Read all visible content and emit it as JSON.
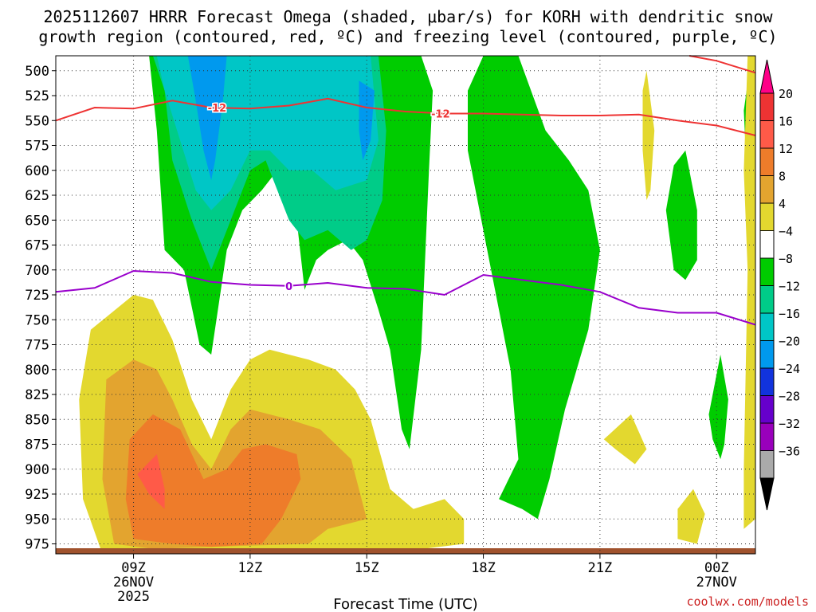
{
  "chart_data": {
    "type": "heatmap",
    "title_line1": "2025112607 HRRR Forecast Omega (shaded, μbar/s) for KORH with dendritic snow",
    "title_line2": "growth region (contoured, red, ºC) and freezing level (contoured, purple, ºC)",
    "xlabel": "Forecast Time (UTC)",
    "credit": "coolwx.com/models",
    "x_ticks": [
      {
        "hour": 9,
        "label": "09Z",
        "sub1": "26NOV",
        "sub2": "2025"
      },
      {
        "hour": 12,
        "label": "12Z",
        "sub1": "",
        "sub2": ""
      },
      {
        "hour": 15,
        "label": "15Z",
        "sub1": "",
        "sub2": ""
      },
      {
        "hour": 18,
        "label": "18Z",
        "sub1": "",
        "sub2": ""
      },
      {
        "hour": 21,
        "label": "21Z",
        "sub1": "",
        "sub2": ""
      },
      {
        "hour": 24,
        "label": "00Z",
        "sub1": "27NOV",
        "sub2": ""
      }
    ],
    "xlim": [
      7,
      25
    ],
    "y_levels": [
      500,
      525,
      550,
      575,
      600,
      625,
      650,
      675,
      700,
      725,
      750,
      775,
      800,
      825,
      850,
      875,
      900,
      925,
      950,
      975
    ],
    "ylim": [
      485,
      985
    ],
    "colorbar": {
      "labels": [
        "20",
        "16",
        "12",
        "8",
        "4",
        "−4",
        "−8",
        "−12",
        "−16",
        "−20",
        "−24",
        "−28",
        "−32",
        "−36"
      ],
      "colors": [
        "#ff0088",
        "#ee3333",
        "#ff5a48",
        "#ee7c2a",
        "#e3a42f",
        "#e3d82f",
        "#ffffff",
        "#00cc00",
        "#00cc88",
        "#00c6c6",
        "#0099ee",
        "#1133dd",
        "#6600cc",
        "#9900bb",
        "#aaaaaa",
        "#000000"
      ]
    },
    "fields": [
      {
        "name": "omega -4 to -8",
        "value_range": "-8 to -4",
        "color": "#00cc00",
        "region": [
          [
            8.6,
            485
          ],
          [
            9.4,
            485
          ],
          [
            9.6,
            560
          ],
          [
            9.8,
            680
          ],
          [
            10.3,
            700
          ],
          [
            10.7,
            775
          ],
          [
            11,
            785
          ],
          [
            11.4,
            680
          ],
          [
            11.8,
            640
          ],
          [
            12.3,
            620
          ],
          [
            12.7,
            600
          ],
          [
            13.2,
            650
          ],
          [
            13.4,
            720
          ],
          [
            13.7,
            690
          ],
          [
            14,
            680
          ],
          [
            14.5,
            670
          ],
          [
            14.9,
            690
          ],
          [
            15.3,
            740
          ],
          [
            15.6,
            780
          ],
          [
            15.9,
            860
          ],
          [
            16.1,
            880
          ],
          [
            16.4,
            780
          ],
          [
            16.6,
            600
          ],
          [
            16.7,
            520
          ],
          [
            16.4,
            485
          ]
        ]
      },
      {
        "name": "omega -4 to -8",
        "value_range": "-8 to -4",
        "color": "#00cc00",
        "region": [
          [
            18,
            485
          ],
          [
            18.9,
            485
          ],
          [
            19.6,
            560
          ],
          [
            20.2,
            590
          ],
          [
            20.7,
            620
          ],
          [
            21,
            680
          ],
          [
            20.7,
            760
          ],
          [
            20.1,
            840
          ],
          [
            19.7,
            910
          ],
          [
            19.4,
            950
          ],
          [
            19,
            940
          ],
          [
            18.4,
            930
          ],
          [
            18.9,
            890
          ],
          [
            18.7,
            800
          ],
          [
            18.4,
            740
          ],
          [
            18.1,
            680
          ],
          [
            17.6,
            580
          ],
          [
            17.6,
            520
          ]
        ]
      },
      {
        "name": "omega -4 to -8",
        "value_range": "-8 to -4",
        "color": "#00cc00",
        "region": [
          [
            22.9,
            595
          ],
          [
            23.2,
            580
          ],
          [
            23.5,
            640
          ],
          [
            23.5,
            690
          ],
          [
            23.2,
            710
          ],
          [
            22.9,
            700
          ],
          [
            22.7,
            640
          ]
        ]
      },
      {
        "name": "omega -4 to -8",
        "value_range": "-8 to -4",
        "color": "#00cc00",
        "region": [
          [
            23.8,
            845
          ],
          [
            24.1,
            785
          ],
          [
            24.3,
            830
          ],
          [
            24.2,
            875
          ],
          [
            24.1,
            890
          ],
          [
            23.9,
            870
          ]
        ]
      },
      {
        "name": "omega -4 to -8",
        "value_range": "-8 to -4",
        "color": "#00cc00",
        "region": [
          [
            24.9,
            485
          ],
          [
            25,
            485
          ],
          [
            25,
            700
          ],
          [
            24.8,
            620
          ],
          [
            24.7,
            540
          ]
        ]
      },
      {
        "name": "omega -8 to -12",
        "value_range": "-12 to -8",
        "color": "#00cc88",
        "region": [
          [
            9.5,
            485
          ],
          [
            15.3,
            485
          ],
          [
            15.5,
            560
          ],
          [
            15.4,
            630
          ],
          [
            15,
            670
          ],
          [
            14.6,
            680
          ],
          [
            14,
            660
          ],
          [
            13.4,
            670
          ],
          [
            13,
            650
          ],
          [
            12.4,
            590
          ],
          [
            12,
            600
          ],
          [
            11.6,
            640
          ],
          [
            11,
            700
          ],
          [
            10.5,
            650
          ],
          [
            10,
            590
          ],
          [
            9.8,
            520
          ]
        ]
      },
      {
        "name": "omega -12 to -16",
        "value_range": "-16 to -12",
        "color": "#00c6c6",
        "region": [
          [
            9.6,
            485
          ],
          [
            15.1,
            485
          ],
          [
            15.3,
            570
          ],
          [
            15,
            610
          ],
          [
            14.2,
            620
          ],
          [
            13.6,
            600
          ],
          [
            13,
            600
          ],
          [
            12.5,
            580
          ],
          [
            12,
            580
          ],
          [
            11.5,
            620
          ],
          [
            11,
            640
          ],
          [
            10.6,
            620
          ],
          [
            10.2,
            570
          ],
          [
            9.8,
            520
          ]
        ]
      },
      {
        "name": "omega -16 to -20",
        "value_range": "-20 to -16",
        "color": "#0099ee",
        "region": [
          [
            10.4,
            485
          ],
          [
            11.4,
            485
          ],
          [
            11.3,
            530
          ],
          [
            11.1,
            590
          ],
          [
            11,
            610
          ],
          [
            10.8,
            580
          ],
          [
            10.6,
            530
          ]
        ]
      },
      {
        "name": "omega -16 to -20",
        "value_range": "-20 to -16",
        "color": "#0099ee",
        "region": [
          [
            14.8,
            510
          ],
          [
            15.2,
            520
          ],
          [
            15.1,
            570
          ],
          [
            14.9,
            590
          ],
          [
            14.8,
            560
          ]
        ]
      },
      {
        "name": "omega 4 to 8",
        "value_range": "4 to 8",
        "color": "#e3d82f",
        "region": [
          [
            7.9,
            760
          ],
          [
            9,
            725
          ],
          [
            9.5,
            730
          ],
          [
            10,
            770
          ],
          [
            10.5,
            830
          ],
          [
            11,
            870
          ],
          [
            11.5,
            820
          ],
          [
            12,
            790
          ],
          [
            12.5,
            780
          ],
          [
            13.5,
            790
          ],
          [
            14.2,
            800
          ],
          [
            14.7,
            820
          ],
          [
            15.1,
            850
          ],
          [
            15.6,
            920
          ],
          [
            16.2,
            940
          ],
          [
            17,
            930
          ],
          [
            17.5,
            950
          ],
          [
            17.5,
            975
          ],
          [
            15.4,
            985
          ],
          [
            8.2,
            985
          ],
          [
            7.7,
            930
          ],
          [
            7.6,
            830
          ]
        ]
      },
      {
        "name": "omega 4 to 8",
        "value_range": "4 to 8",
        "color": "#e3d82f",
        "region": [
          [
            22.1,
            520
          ],
          [
            22.2,
            500
          ],
          [
            22.4,
            560
          ],
          [
            22.3,
            620
          ],
          [
            22.2,
            630
          ],
          [
            22.1,
            580
          ]
        ]
      },
      {
        "name": "omega 4 to 8",
        "value_range": "4 to 8",
        "color": "#e3d82f",
        "region": [
          [
            21.1,
            870
          ],
          [
            21.8,
            845
          ],
          [
            22.2,
            880
          ],
          [
            21.9,
            895
          ],
          [
            21.4,
            880
          ]
        ]
      },
      {
        "name": "omega 4 to 8",
        "value_range": "4 to 8",
        "color": "#e3d82f",
        "region": [
          [
            23,
            940
          ],
          [
            23.4,
            920
          ],
          [
            23.7,
            945
          ],
          [
            23.5,
            975
          ],
          [
            23,
            970
          ]
        ]
      },
      {
        "name": "omega 4 to 8",
        "value_range": "4 to 8",
        "color": "#e3d82f",
        "region": [
          [
            24.8,
            485
          ],
          [
            25,
            485
          ],
          [
            25,
            950
          ],
          [
            24.7,
            960
          ],
          [
            24.7,
            900
          ],
          [
            24.8,
            700
          ],
          [
            24.7,
            600
          ]
        ]
      },
      {
        "name": "omega 8 to 12",
        "value_range": "8 to 12",
        "color": "#e3a42f",
        "region": [
          [
            8.3,
            810
          ],
          [
            9,
            790
          ],
          [
            9.6,
            800
          ],
          [
            10,
            830
          ],
          [
            10.5,
            875
          ],
          [
            11,
            900
          ],
          [
            11.5,
            860
          ],
          [
            12,
            840
          ],
          [
            13,
            850
          ],
          [
            13.8,
            860
          ],
          [
            14.6,
            890
          ],
          [
            14.9,
            935
          ],
          [
            15,
            950
          ],
          [
            14,
            960
          ],
          [
            13.5,
            975
          ],
          [
            11,
            978
          ],
          [
            9.5,
            980
          ],
          [
            8.5,
            975
          ],
          [
            8.2,
            910
          ]
        ]
      },
      {
        "name": "omega 12 to 16",
        "value_range": "12 to 16",
        "color": "#ee7c2a",
        "region": [
          [
            8.9,
            870
          ],
          [
            9.5,
            845
          ],
          [
            10.2,
            860
          ],
          [
            10.8,
            910
          ],
          [
            11.4,
            900
          ],
          [
            11.8,
            880
          ],
          [
            12.4,
            875
          ],
          [
            13.2,
            885
          ],
          [
            13.3,
            910
          ],
          [
            12.8,
            950
          ],
          [
            12.3,
            975
          ],
          [
            11,
            978
          ],
          [
            10,
            975
          ],
          [
            9,
            970
          ],
          [
            8.8,
            930
          ]
        ]
      },
      {
        "name": "omega 16 to 20",
        "value_range": "16 to 20",
        "color": "#ff5a48",
        "region": [
          [
            9.1,
            905
          ],
          [
            9.6,
            885
          ],
          [
            9.8,
            920
          ],
          [
            9.8,
            940
          ],
          [
            9.4,
            925
          ]
        ]
      }
    ],
    "contours": [
      {
        "name": "dendritic growth -12C",
        "color": "#ee3333",
        "value": -12,
        "label": "-12",
        "x": [
          7,
          8,
          9,
          10,
          11,
          12,
          13,
          14,
          15,
          16,
          17,
          18,
          19,
          20,
          21,
          22,
          23,
          24,
          25
        ],
        "y": [
          550,
          537,
          538,
          530,
          537,
          538,
          535,
          528,
          537,
          541,
          543,
          543,
          544,
          545,
          545,
          544,
          550,
          555,
          565
        ]
      },
      {
        "name": "dendritic growth -12C upper",
        "color": "#ee3333",
        "value": -12,
        "label": "",
        "x": [
          23.3,
          24,
          25
        ],
        "y": [
          485,
          490,
          502
        ]
      },
      {
        "name": "freezing level 0C",
        "color": "#9900cc",
        "value": 0,
        "label": "0",
        "x": [
          7,
          8,
          9,
          10,
          11,
          12,
          13,
          14,
          15,
          16,
          17,
          18,
          19,
          20,
          21,
          22,
          23,
          24,
          25
        ],
        "y": [
          722,
          718,
          701,
          703,
          712,
          715,
          716,
          713,
          718,
          719,
          725,
          705,
          710,
          715,
          722,
          738,
          743,
          743,
          755
        ]
      }
    ]
  }
}
